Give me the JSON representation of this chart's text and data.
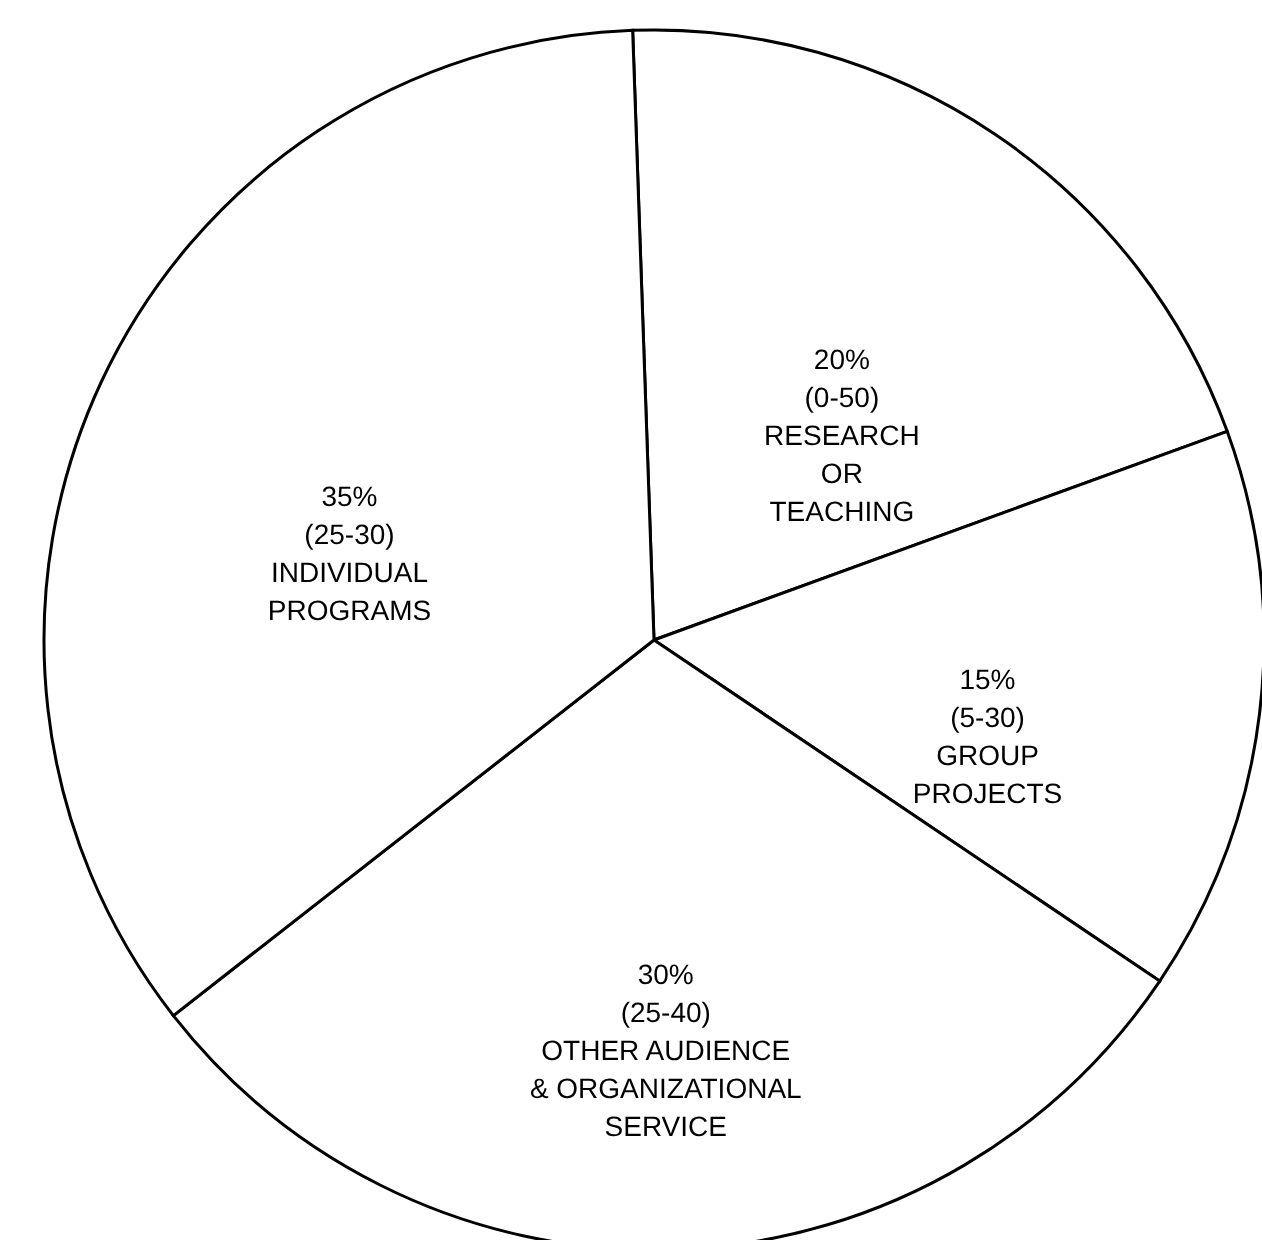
{
  "chart_data": {
    "type": "pie",
    "categories": [
      "RESEARCH\nOR\nTEACHING",
      "GROUP\nPROJECTS",
      "OTHER AUDIENCE\n& ORGANIZATIONAL\nSERVICE",
      "INDIVIDUAL\nPROGRAMS"
    ],
    "values": [
      20,
      15,
      30,
      35
    ],
    "value_labels": [
      "20%\n(0-50)",
      "15%\n(5-30)",
      "30%\n(25-40)",
      "35%\n(25-30)"
    ],
    "colors": [
      "#ffffff",
      "#ffffff",
      "#ffffff",
      "#ffffff"
    ]
  }
}
